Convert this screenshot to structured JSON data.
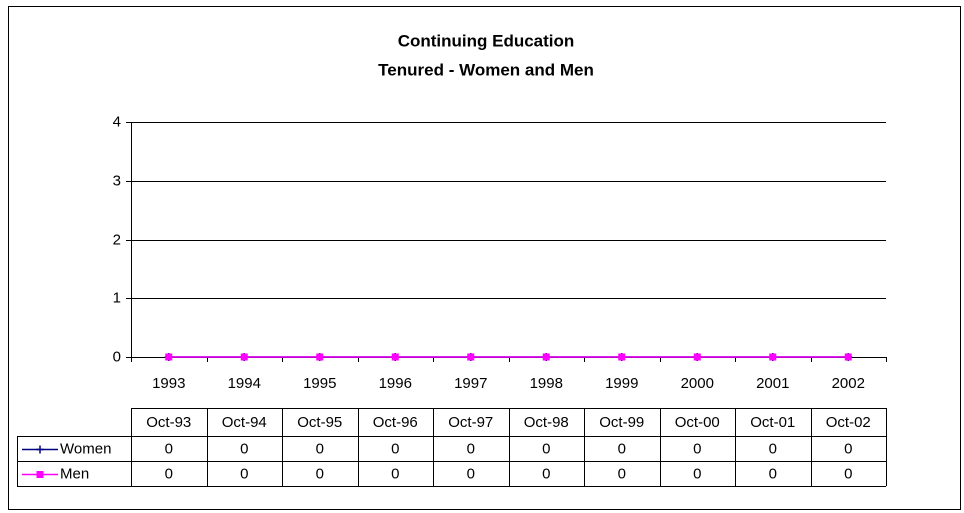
{
  "chart_data": {
    "type": "line",
    "title": "Continuing Education",
    "subtitle": "Tenured - Women and Men",
    "categories": [
      "1993",
      "1994",
      "1995",
      "1996",
      "1997",
      "1998",
      "1999",
      "2000",
      "2001",
      "2002"
    ],
    "table_columns": [
      "Oct-93",
      "Oct-94",
      "Oct-95",
      "Oct-96",
      "Oct-97",
      "Oct-98",
      "Oct-99",
      "Oct-00",
      "Oct-01",
      "Oct-02"
    ],
    "series": [
      {
        "name": "Women",
        "color": "#000080",
        "marker": "plus",
        "values": [
          0,
          0,
          0,
          0,
          0,
          0,
          0,
          0,
          0,
          0
        ]
      },
      {
        "name": "Men",
        "color": "#ff00ff",
        "marker": "square",
        "values": [
          0,
          0,
          0,
          0,
          0,
          0,
          0,
          0,
          0,
          0
        ]
      }
    ],
    "ylim": [
      0,
      4
    ],
    "yticks": [
      0,
      1,
      2,
      3,
      4
    ],
    "grid": true
  }
}
